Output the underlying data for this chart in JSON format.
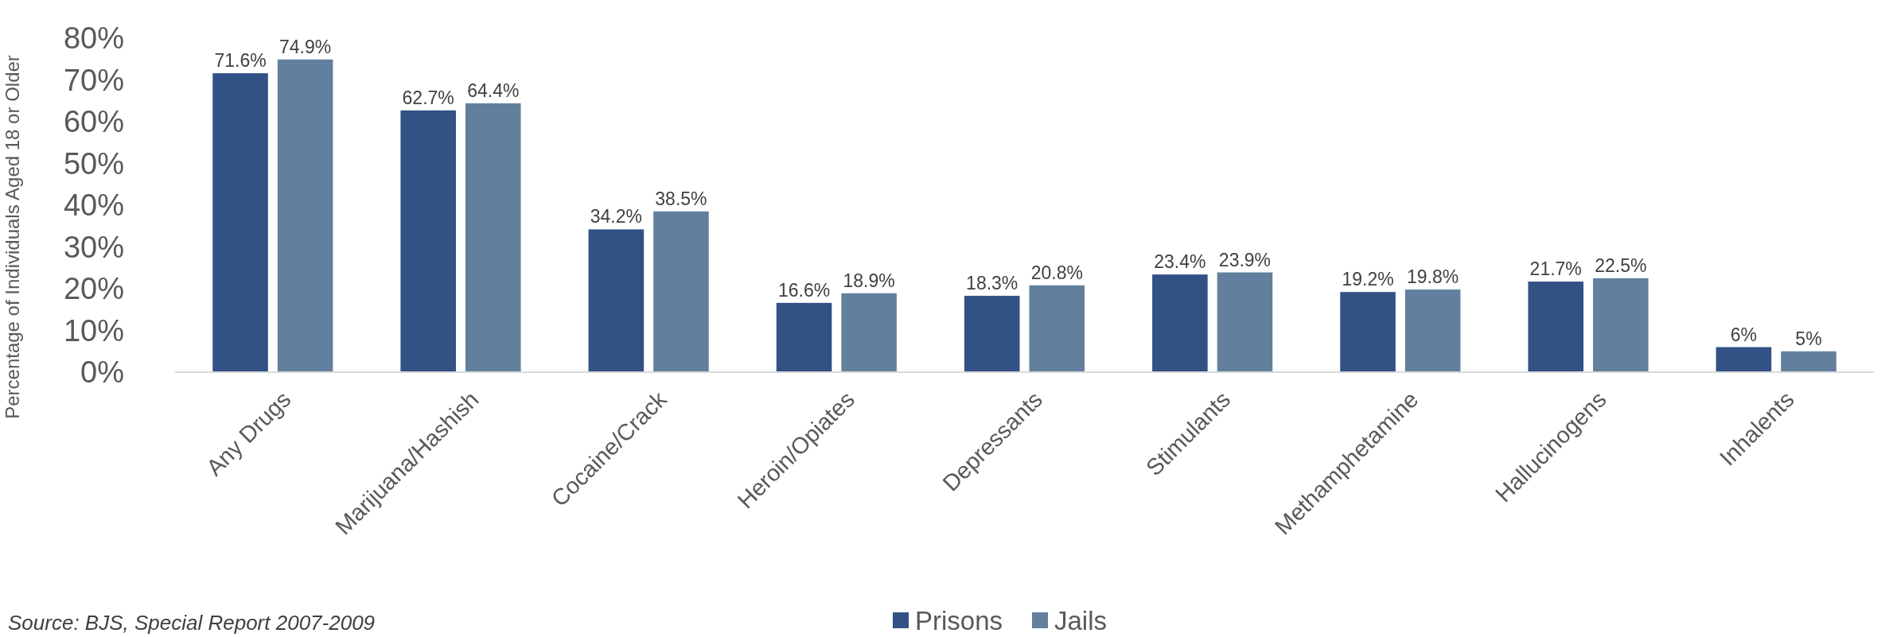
{
  "chart_data": {
    "type": "bar",
    "ylabel": "Percentage of Individuals Aged 18 or Older",
    "categories": [
      "Any Drugs",
      "Marijuana/Hashish",
      "Cocaine/Crack",
      "Heroin/Opiates",
      "Depressants",
      "Stimulants",
      "Methamphetamine",
      "Hallucinogens",
      "Inhalents"
    ],
    "series": [
      {
        "name": "Prisons",
        "color": "#325185",
        "values": [
          71.6,
          62.7,
          34.2,
          16.6,
          18.3,
          23.4,
          19.2,
          21.7,
          6
        ],
        "value_labels": [
          "71.6%",
          "62.7%",
          "34.2%",
          "16.6%",
          "18.3%",
          "23.4%",
          "19.2%",
          "21.7%",
          "6%"
        ]
      },
      {
        "name": "Jails",
        "color": "#62809e",
        "values": [
          74.9,
          64.4,
          38.5,
          18.9,
          20.8,
          23.9,
          19.8,
          22.5,
          5
        ],
        "value_labels": [
          "74.9%",
          "64.4%",
          "38.5%",
          "18.9%",
          "20.8%",
          "23.9%",
          "19.8%",
          "22.5%",
          "5%"
        ]
      }
    ],
    "ylim": [
      0,
      80
    ],
    "yticks": [
      {
        "value": 0,
        "label": "0%"
      },
      {
        "value": 10,
        "label": "10%"
      },
      {
        "value": 20,
        "label": "20%"
      },
      {
        "value": 30,
        "label": "30%"
      },
      {
        "value": 40,
        "label": "40%"
      },
      {
        "value": 50,
        "label": "50%"
      },
      {
        "value": 60,
        "label": "60%"
      },
      {
        "value": 70,
        "label": "70%"
      },
      {
        "value": 80,
        "label": "80%"
      }
    ],
    "grid": false,
    "legend": "bottom",
    "annotations": [
      "Source: BJS, Special Report 2007-2009"
    ]
  }
}
